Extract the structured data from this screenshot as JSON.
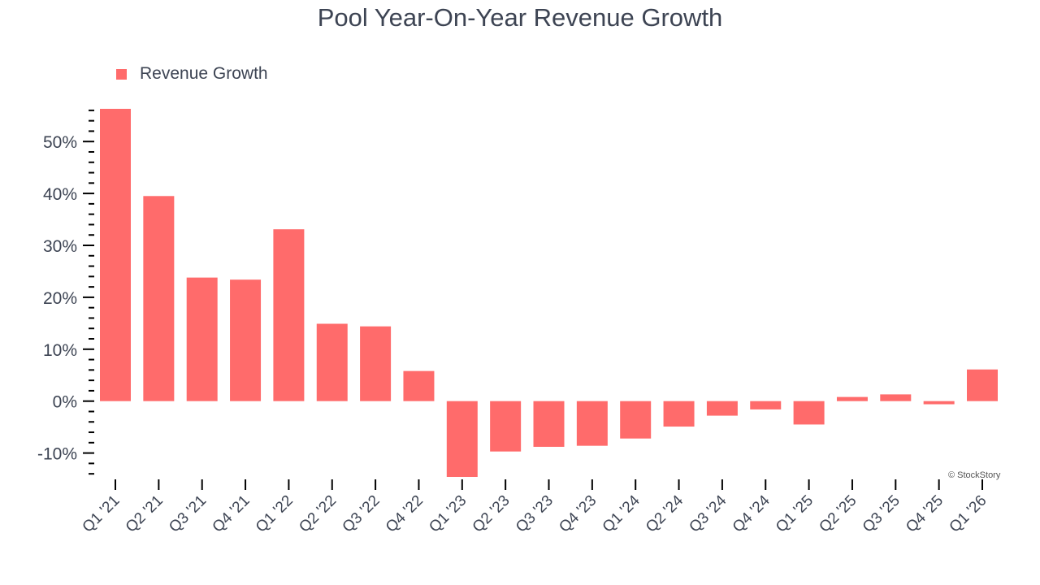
{
  "chart_data": {
    "type": "bar",
    "title": "Pool Year-On-Year Revenue Growth",
    "legend": {
      "entries": [
        "Revenue Growth"
      ],
      "placement": "top-left"
    },
    "xlabel": "",
    "ylabel": "",
    "categories": [
      "Q1 '21",
      "Q2 '21",
      "Q3 '21",
      "Q4 '21",
      "Q1 '22",
      "Q2 '22",
      "Q3 '22",
      "Q4 '22",
      "Q1 '23",
      "Q2 '23",
      "Q3 '23",
      "Q4 '23",
      "Q1 '24",
      "Q2 '24",
      "Q3 '24",
      "Q4 '24",
      "Q1 '25",
      "Q2 '25",
      "Q3 '25",
      "Q4 '25",
      "Q1 '26"
    ],
    "series": [
      {
        "name": "Revenue Growth",
        "color": "#ff6b6b",
        "values": [
          56.3,
          39.5,
          23.8,
          23.4,
          33.1,
          14.9,
          14.4,
          5.8,
          -14.6,
          -9.7,
          -8.8,
          -8.6,
          -7.2,
          -4.9,
          -2.8,
          -1.6,
          -4.5,
          0.8,
          1.3,
          -0.6,
          6.1
        ]
      }
    ],
    "yticks": [
      -10,
      0,
      10,
      20,
      30,
      40,
      50
    ],
    "ytick_format": "%",
    "ylim": [
      -14.5,
      57
    ],
    "grid": false,
    "credit": "© StockStory"
  }
}
